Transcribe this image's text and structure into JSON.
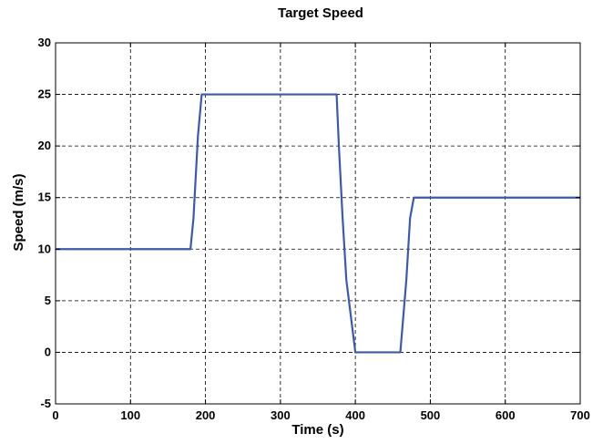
{
  "chart_data": {
    "type": "line",
    "title": "Target Speed",
    "xlabel": "Time (s)",
    "ylabel": "Speed (m/s)",
    "xlim": [
      0,
      700
    ],
    "ylim": [
      -5,
      30
    ],
    "xticks": [
      0,
      100,
      200,
      300,
      400,
      500,
      600,
      700
    ],
    "yticks": [
      -5,
      0,
      5,
      10,
      15,
      20,
      25,
      30
    ],
    "grid": true,
    "grid_style": "dashed",
    "series": [
      {
        "color": "#3c5aa8",
        "x": [
          0,
          180,
          184,
          190,
          195,
          375,
          378,
          383,
          388,
          400,
          460,
          468,
          473,
          478,
          700
        ],
        "y": [
          10,
          10,
          13,
          21,
          25,
          25,
          20,
          13,
          7,
          0,
          0,
          7,
          13,
          15,
          15
        ]
      }
    ]
  }
}
